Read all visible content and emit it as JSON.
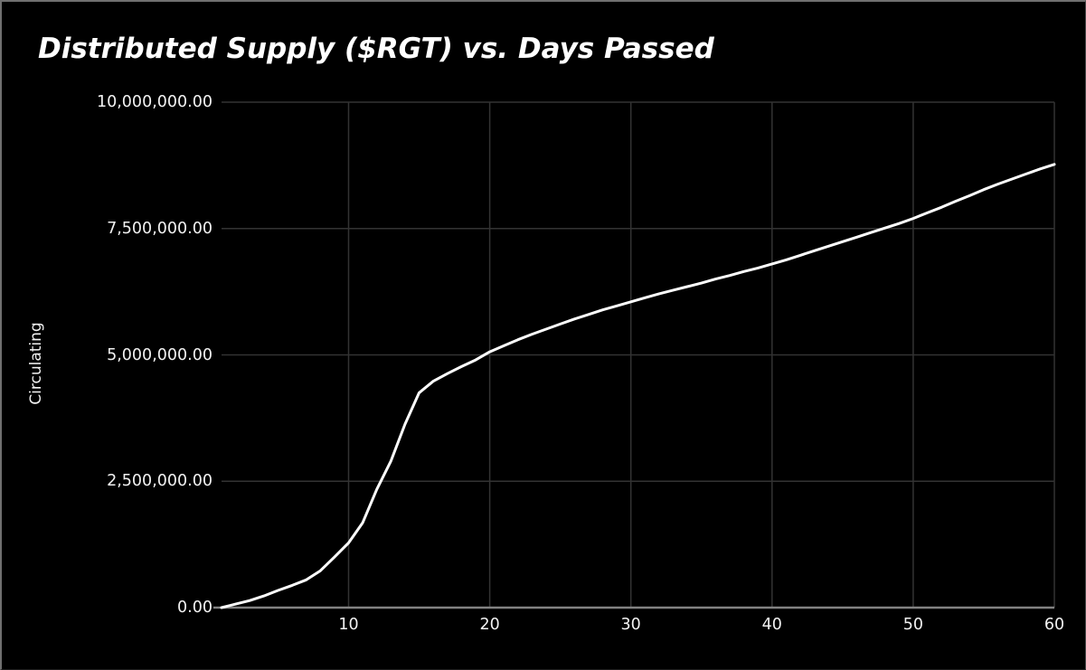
{
  "window": {
    "background_color": "#000000",
    "border_color": "#707070"
  },
  "chart_data": {
    "type": "line",
    "title": "Distributed Supply ($RGT) vs. Days Passed",
    "xlabel": "",
    "ylabel": "Circulating",
    "xlim": [
      1,
      60
    ],
    "ylim": [
      0,
      10000000
    ],
    "grid": true,
    "legend": "none",
    "colors": {
      "background": "#000000",
      "gridline": "#333333",
      "axis_line": "#828282",
      "series_line": "#ffffff",
      "text": "#f2f2f2"
    },
    "x_ticks": [
      {
        "value": 10,
        "label": "10"
      },
      {
        "value": 20,
        "label": "20"
      },
      {
        "value": 30,
        "label": "30"
      },
      {
        "value": 40,
        "label": "40"
      },
      {
        "value": 50,
        "label": "50"
      },
      {
        "value": 60,
        "label": "60"
      }
    ],
    "y_ticks": [
      {
        "value": 0,
        "label": "0.00"
      },
      {
        "value": 2500000,
        "label": "2,500,000.00"
      },
      {
        "value": 5000000,
        "label": "5,000,000.00"
      },
      {
        "value": 7500000,
        "label": "7,500,000.00"
      },
      {
        "value": 10000000,
        "label": "10,000,000.00"
      }
    ],
    "series": [
      {
        "name": "Circulating",
        "x": [
          1,
          2,
          3,
          4,
          5,
          6,
          7,
          8,
          9,
          10,
          11,
          12,
          13,
          14,
          15,
          16,
          17,
          18,
          19,
          20,
          21,
          22,
          23,
          24,
          25,
          26,
          27,
          28,
          29,
          30,
          31,
          32,
          33,
          34,
          35,
          36,
          37,
          38,
          39,
          40,
          41,
          42,
          43,
          44,
          45,
          46,
          47,
          48,
          49,
          50,
          51,
          52,
          53,
          54,
          55,
          56,
          57,
          58,
          59,
          60
        ],
        "y": [
          0,
          70000,
          140000,
          230000,
          340000,
          440000,
          550000,
          730000,
          1000000,
          1280000,
          1680000,
          2340000,
          2900000,
          3630000,
          4250000,
          4480000,
          4630000,
          4770000,
          4900000,
          5060000,
          5180000,
          5300000,
          5410000,
          5510000,
          5610000,
          5710000,
          5800000,
          5890000,
          5970000,
          6050000,
          6130000,
          6210000,
          6280000,
          6350000,
          6420000,
          6500000,
          6570000,
          6650000,
          6720000,
          6800000,
          6880000,
          6970000,
          7060000,
          7150000,
          7240000,
          7330000,
          7420000,
          7510000,
          7600000,
          7700000,
          7810000,
          7920000,
          8040000,
          8150000,
          8270000,
          8380000,
          8480000,
          8580000,
          8680000,
          8770000
        ]
      }
    ]
  }
}
